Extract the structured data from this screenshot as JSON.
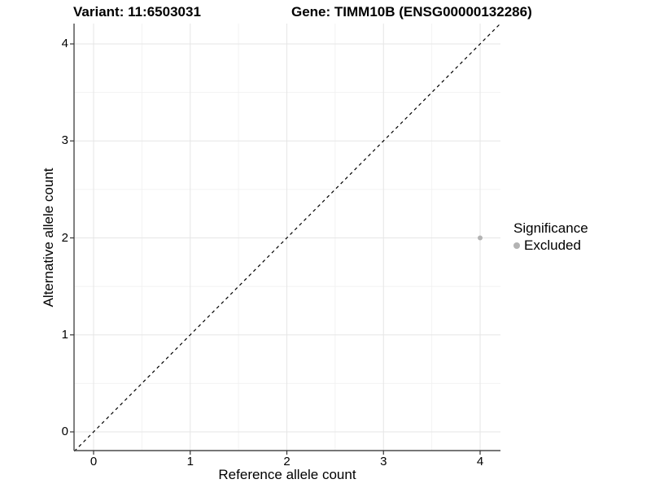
{
  "chart_data": {
    "type": "scatter",
    "title_left": "Variant: 11:6503031",
    "title_right": "Gene: TIMM10B (ENSG00000132286)",
    "xlabel": "Reference allele count",
    "ylabel": "Alternative allele count",
    "xlim": [
      -0.2,
      4.2
    ],
    "ylim": [
      -0.2,
      4.2
    ],
    "x_ticks": [
      0,
      1,
      2,
      3,
      4
    ],
    "y_ticks": [
      0,
      1,
      2,
      3,
      4
    ],
    "x_minor_ticks": [
      0.5,
      1.5,
      2.5,
      3.5
    ],
    "y_minor_ticks": [
      0.5,
      1.5,
      2.5,
      3.5
    ],
    "grid": "major+minor",
    "points": [
      {
        "x": 4,
        "y": 2,
        "series": "Excluded"
      }
    ],
    "reference_line": {
      "slope": 1,
      "intercept": 0,
      "style": "dashed",
      "color": "#000000"
    },
    "legend": {
      "title": "Significance",
      "position": "right",
      "entries": [
        {
          "label": "Excluded",
          "color": "#b3b3b3"
        }
      ]
    },
    "colors": {
      "point": "#b3b3b3",
      "grid_major": "#e6e6e6",
      "grid_minor": "#f2f2f2",
      "axis_line": "#4a4a4a",
      "tick_mark": "#333333",
      "text": "#000000",
      "background": "#ffffff"
    }
  }
}
